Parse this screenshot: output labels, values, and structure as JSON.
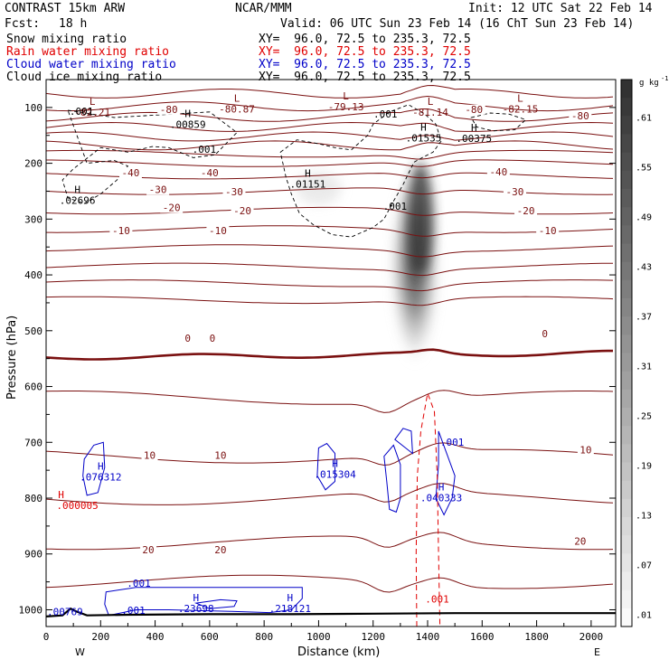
{
  "header": {
    "model": "CONTRAST 15km ARW",
    "center": "NCAR/MMM",
    "init": "Init: 12 UTC Sat 22 Feb 14",
    "fcst_label": "Fcst:",
    "fcst_value": "18 h",
    "valid": "Valid: 06 UTC Sun 23 Feb 14 (16 ChT Sun 23 Feb 14)",
    "fields": [
      {
        "name": "Snow mixing ratio",
        "xy": "XY=  96.0, 72.5 to 235.3, 72.5",
        "color": "#000000"
      },
      {
        "name": "Rain water mixing ratio",
        "xy": "XY=  96.0, 72.5 to 235.3, 72.5",
        "color": "#e00000"
      },
      {
        "name": "Cloud water mixing ratio",
        "xy": "XY=  96.0, 72.5 to 235.3, 72.5",
        "color": "#0000c8"
      },
      {
        "name": "Cloud ice mixing ratio",
        "xy": "XY=  96.0, 72.5 to 235.3, 72.5",
        "color": "#000000"
      }
    ]
  },
  "colorbar": {
    "unit_main": "g kg",
    "unit_exp": "-1",
    "labels": [
      ".61",
      ".55",
      ".49",
      ".43",
      ".37",
      ".31",
      ".25",
      ".19",
      ".13",
      ".07",
      ".01"
    ]
  },
  "chart_data": {
    "type": "cross-section",
    "xlabel": "Distance (km)",
    "ylabel": "Pressure (hPa)",
    "xlim": [
      0,
      2090
    ],
    "ylim": [
      50,
      1030
    ],
    "y_scale": "linear, inverted",
    "x_ticks": [
      0,
      200,
      400,
      600,
      800,
      1000,
      1200,
      1400,
      1600,
      1800,
      2000
    ],
    "y_ticks": [
      100,
      200,
      300,
      400,
      500,
      600,
      700,
      800,
      900,
      1000
    ],
    "endpoints": {
      "left": "W",
      "right": "E"
    },
    "temperature_contours": {
      "color": "#7a1010",
      "levels": [
        -80,
        -75,
        -70,
        -65,
        -60,
        -55,
        -50,
        -45,
        -40,
        -35,
        -30,
        -25,
        -20,
        -15,
        -10,
        -5,
        0,
        5,
        10,
        15,
        20,
        25
      ],
      "base_pressure": [
        75,
        98,
        117,
        135,
        152,
        168,
        183,
        200,
        222,
        250,
        285,
        318,
        352,
        385,
        415,
        445,
        548,
        620,
        725,
        800,
        880,
        950
      ],
      "labels": [
        {
          "text": "-80",
          "x": 450,
          "p": 108
        },
        {
          "text": "-80",
          "x": 1570,
          "p": 108
        },
        {
          "text": "-80",
          "x": 1960,
          "p": 120
        },
        {
          "text": "-40",
          "x": 310,
          "p": 222
        },
        {
          "text": "-40",
          "x": 600,
          "p": 222
        },
        {
          "text": "-40",
          "x": 1660,
          "p": 220
        },
        {
          "text": "-30",
          "x": 410,
          "p": 252
        },
        {
          "text": "-30",
          "x": 690,
          "p": 256
        },
        {
          "text": "-30",
          "x": 1720,
          "p": 256
        },
        {
          "text": "-20",
          "x": 460,
          "p": 284
        },
        {
          "text": "-20",
          "x": 720,
          "p": 290
        },
        {
          "text": "-20",
          "x": 1760,
          "p": 290
        },
        {
          "text": "-10",
          "x": 275,
          "p": 325
        },
        {
          "text": "-10",
          "x": 630,
          "p": 325
        },
        {
          "text": "-10",
          "x": 1840,
          "p": 325
        },
        {
          "text": "0",
          "x": 520,
          "p": 518
        },
        {
          "text": "0",
          "x": 610,
          "p": 518
        },
        {
          "text": "0",
          "x": 1830,
          "p": 510
        },
        {
          "text": "10",
          "x": 380,
          "p": 728
        },
        {
          "text": "10",
          "x": 640,
          "p": 728
        },
        {
          "text": "10",
          "x": 1980,
          "p": 718
        },
        {
          "text": "20",
          "x": 375,
          "p": 897
        },
        {
          "text": "20",
          "x": 640,
          "p": 897
        },
        {
          "text": "20",
          "x": 1960,
          "p": 882
        }
      ],
      "extrema": [
        {
          "type": "L",
          "value": "-82.21",
          "x": 170,
          "p": 95
        },
        {
          "type": "L",
          "value": "-80.87",
          "x": 700,
          "p": 90
        },
        {
          "type": "L",
          "value": "-79.13",
          "x": 1100,
          "p": 86
        },
        {
          "type": "L",
          "value": "-81.14",
          "x": 1410,
          "p": 95
        },
        {
          "type": "L",
          "value": "-82.15",
          "x": 1740,
          "p": 90
        }
      ]
    },
    "snow_mixing_ratio": {
      "shaded": true,
      "peak_value": 0.61,
      "core": {
        "x": 1360,
        "p_top": 185,
        "p_bottom": 550
      }
    },
    "cloud_ice_mixing_ratio": {
      "color": "#000000",
      "style": "dashed",
      "labels": [
        {
          "text": ".001",
          "x": 130,
          "p": 113
        },
        {
          "text": ".001",
          "x": 580,
          "p": 181
        },
        {
          "text": ".001",
          "x": 1245,
          "p": 118
        },
        {
          "text": ".001",
          "x": 1280,
          "p": 283
        }
      ],
      "maxima": [
        {
          "value": ".00859",
          "x": 520,
          "p": 127
        },
        {
          "value": ".02696",
          "x": 115,
          "p": 263
        },
        {
          "value": ".01151",
          "x": 960,
          "p": 234
        },
        {
          "value": ".01535",
          "x": 1385,
          "p": 151
        },
        {
          "value": ".00375",
          "x": 1570,
          "p": 152
        }
      ]
    },
    "cloud_water_mixing_ratio": {
      "color": "#0000c8",
      "labels": [
        {
          "text": ".001",
          "x": 1490,
          "p": 706
        },
        {
          "text": ".001",
          "x": 340,
          "p": 959
        },
        {
          "text": ".001",
          "x": 320,
          "p": 1007
        }
      ],
      "maxima": [
        {
          "value": ".076312",
          "x": 200,
          "p": 759
        },
        {
          "value": ".015304",
          "x": 1060,
          "p": 754
        },
        {
          "value": ".040333",
          "x": 1450,
          "p": 796
        },
        {
          "value": ".23698",
          "x": 550,
          "p": 994
        },
        {
          "value": ".218121",
          "x": 895,
          "p": 994
        }
      ],
      "left_edge_label": ".00769"
    },
    "rain_water_mixing_ratio": {
      "color": "#e00000",
      "style": "dashed",
      "labels": [
        {
          "text": ".001",
          "x": 1435,
          "p": 987
        }
      ],
      "maxima": [
        {
          "value": ".000005",
          "x": 55,
          "p": 810
        }
      ]
    },
    "terrain": {
      "x": [
        0,
        60,
        90,
        110,
        150,
        300,
        600,
        900,
        1200,
        1500,
        1800,
        2090
      ],
      "p": [
        1012,
        1010,
        998,
        1003,
        1010,
        1009,
        1008,
        1008,
        1007,
        1006,
        1006,
        1006
      ]
    }
  }
}
